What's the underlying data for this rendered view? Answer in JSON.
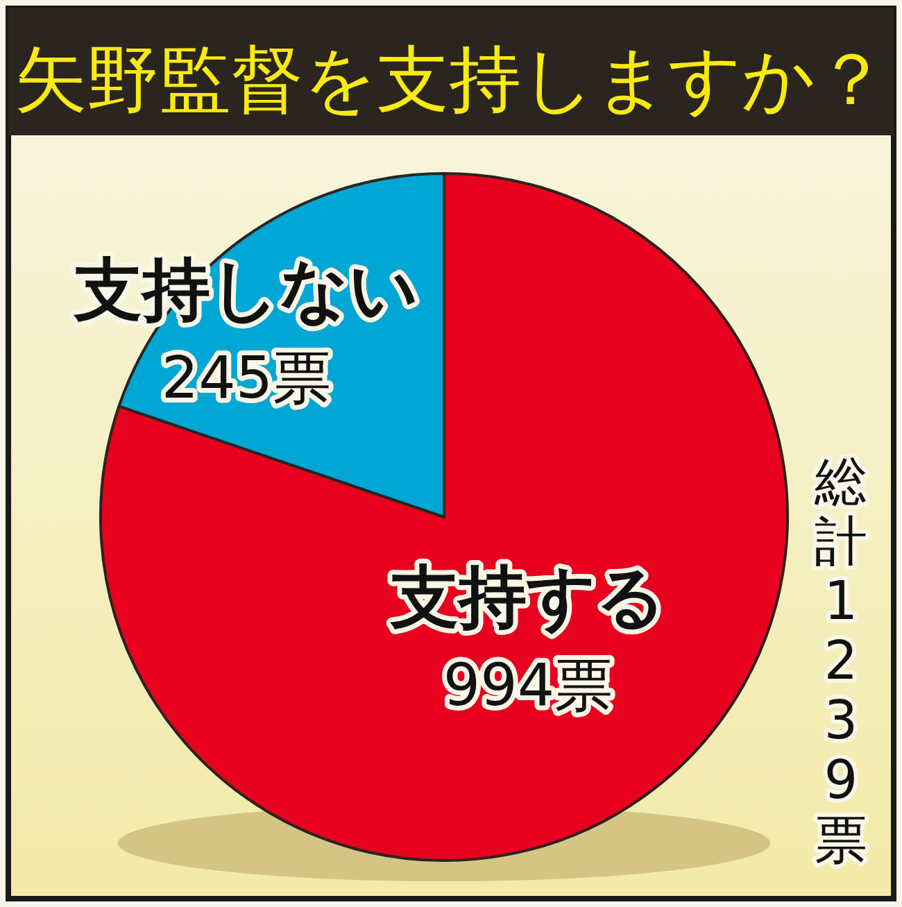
{
  "chart_data": {
    "type": "pie",
    "title": "矢野監督を支持しますか？",
    "categories": [
      "支持する",
      "支持しない"
    ],
    "values": [
      994,
      245
    ],
    "colors": [
      "#e8001f",
      "#00a6d4"
    ],
    "value_labels": [
      "994票",
      "245票"
    ],
    "annotations": [
      "総計1239票"
    ]
  }
}
